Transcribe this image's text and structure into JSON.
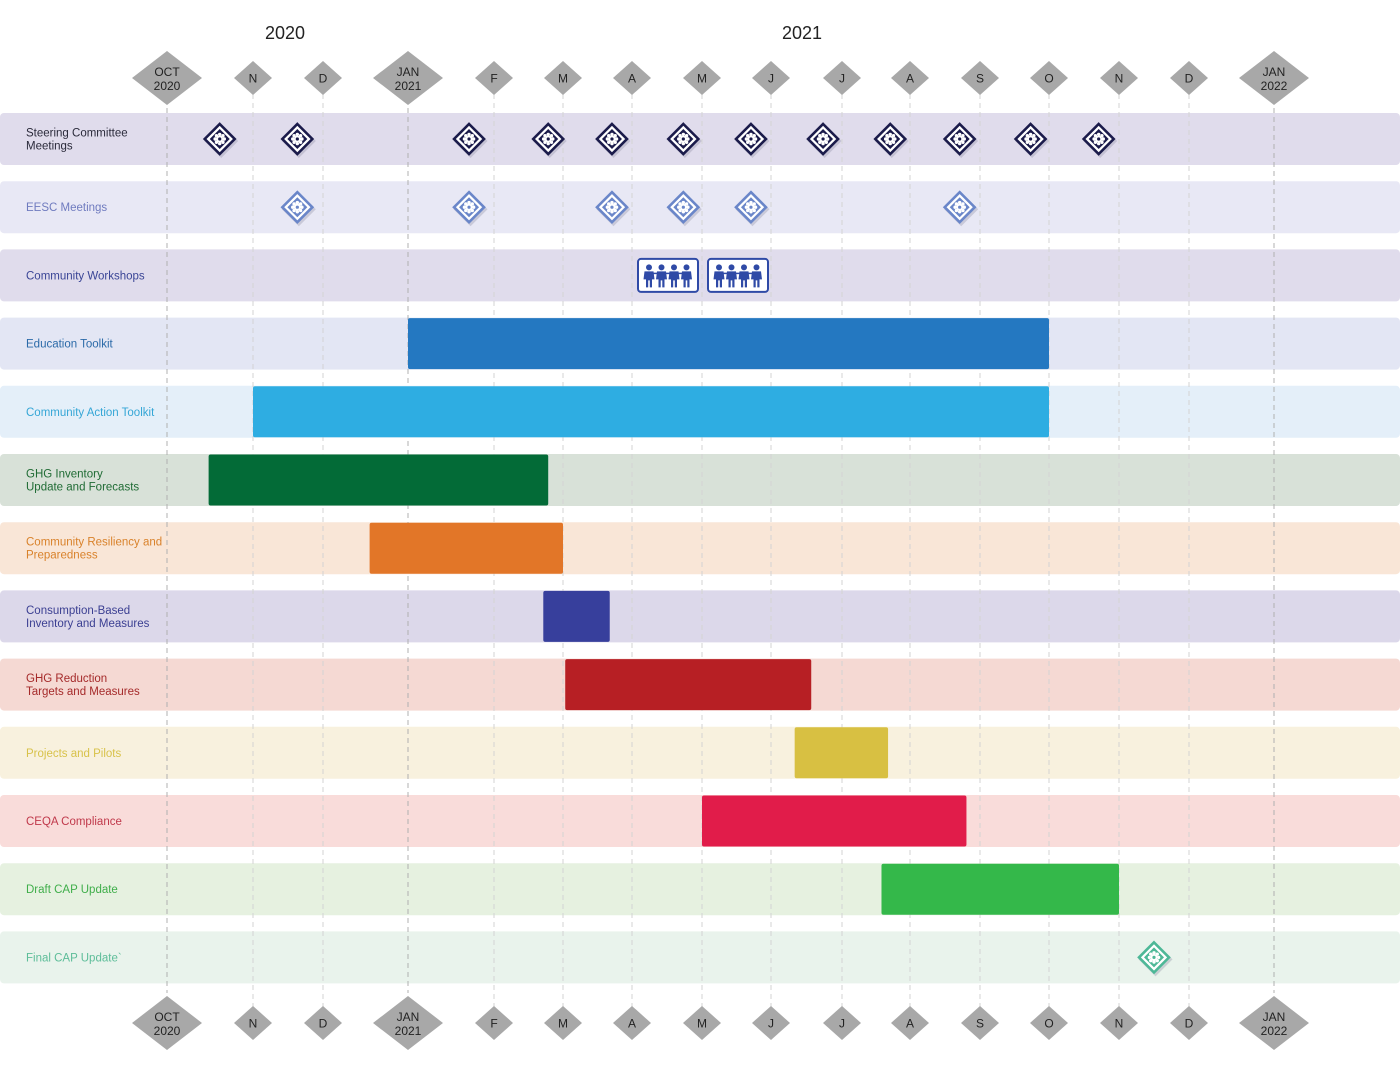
{
  "chart_data": {
    "type": "gantt",
    "title": "",
    "years": [
      "2020",
      "2021"
    ],
    "timeline": {
      "start": "2020-10",
      "end": "2022-01",
      "month_markers": [
        {
          "label": [
            "OCT",
            "2020"
          ],
          "date": "2020-10",
          "major": true
        },
        {
          "label": [
            "N"
          ],
          "date": "2020-11",
          "major": false
        },
        {
          "label": [
            "D"
          ],
          "date": "2020-12",
          "major": false
        },
        {
          "label": [
            "JAN",
            "2021"
          ],
          "date": "2021-01",
          "major": true
        },
        {
          "label": [
            "F"
          ],
          "date": "2021-02",
          "major": false
        },
        {
          "label": [
            "M"
          ],
          "date": "2021-03",
          "major": false
        },
        {
          "label": [
            "A"
          ],
          "date": "2021-04",
          "major": false
        },
        {
          "label": [
            "M"
          ],
          "date": "2021-05",
          "major": false
        },
        {
          "label": [
            "J"
          ],
          "date": "2021-06",
          "major": false
        },
        {
          "label": [
            "J"
          ],
          "date": "2021-07",
          "major": false
        },
        {
          "label": [
            "A"
          ],
          "date": "2021-08",
          "major": false
        },
        {
          "label": [
            "S"
          ],
          "date": "2021-09",
          "major": false
        },
        {
          "label": [
            "O"
          ],
          "date": "2021-10",
          "major": false
        },
        {
          "label": [
            "N"
          ],
          "date": "2021-11",
          "major": false
        },
        {
          "label": [
            "D"
          ],
          "date": "2021-12",
          "major": false
        },
        {
          "label": [
            "JAN",
            "2022"
          ],
          "date": "2022-01",
          "major": true
        }
      ]
    },
    "tasks": [
      {
        "name": [
          "Steering Committee",
          "Meetings"
        ],
        "label_color": "#2a2a3a",
        "band_color": "#e0dcec",
        "kind": "milestones",
        "icon": "gear-diamond-icon",
        "marker_color": "#1b1b4b",
        "dates": [
          "2020-10-20",
          "2020-11-20",
          "2021-01-23",
          "2021-02-23",
          "2021-03-23",
          "2021-04-23",
          "2021-05-23",
          "2021-06-23",
          "2021-07-23",
          "2021-08-23",
          "2021-09-23",
          "2021-10-23"
        ]
      },
      {
        "name": [
          "EESC Meetings"
        ],
        "label_color": "#6f7bbf",
        "band_color": "#e8e8f5",
        "kind": "milestones",
        "icon": "gear-diamond-icon",
        "marker_color": "#6a86c9",
        "dates": [
          "2020-11-20",
          "2021-01-23",
          "2021-03-23",
          "2021-04-23",
          "2021-05-23",
          "2021-08-23"
        ]
      },
      {
        "name": [
          "Community Workshops"
        ],
        "label_color": "#3a4596",
        "band_color": "#e0dcec",
        "kind": "workshops",
        "icon": "people-group-icon",
        "marker_color": "#2f4aa6",
        "dates": [
          "2021-04-01",
          "2021-05-01"
        ]
      },
      {
        "name": [
          "Education Toolkit"
        ],
        "label_color": "#2b6aa8",
        "band_color": "#e3e6f4",
        "kind": "bar",
        "start": "2021-01-01",
        "end": "2021-10-01",
        "color": "#2478c1"
      },
      {
        "name": [
          "Community Action Toolkit"
        ],
        "label_color": "#35a6d6",
        "band_color": "#e4eff9",
        "kind": "bar",
        "start": "2020-11-01",
        "end": "2021-10-01",
        "color": "#2eade2"
      },
      {
        "name": [
          "GHG Inventory",
          "Update and Forecasts"
        ],
        "label_color": "#1f6b34",
        "band_color": "#d8e1d8",
        "kind": "bar",
        "start": "2020-10-16",
        "end": "2021-02-23",
        "color": "#036b37"
      },
      {
        "name": [
          "Community Resiliency and",
          "Preparedness"
        ],
        "label_color": "#d9822b",
        "band_color": "#f9e6d7",
        "kind": "bar",
        "start": "2020-12-18",
        "end": "2021-03-01",
        "color": "#e27628"
      },
      {
        "name": [
          "Consumption-Based",
          "Inventory and Measures"
        ],
        "label_color": "#3b3f92",
        "band_color": "#dcd8ea",
        "kind": "bar",
        "start": "2021-02-21",
        "end": "2021-03-22",
        "color": "#373f9c"
      },
      {
        "name": [
          "GHG Reduction",
          "Targets and Measures"
        ],
        "label_color": "#a52a2a",
        "band_color": "#f5d9d3",
        "kind": "bar",
        "start": "2021-03-02",
        "end": "2021-06-18",
        "color": "#b71f24"
      },
      {
        "name": [
          "Projects and Pilots"
        ],
        "label_color": "#d8c24a",
        "band_color": "#f8f1de",
        "kind": "bar",
        "start": "2021-06-11",
        "end": "2021-07-22",
        "color": "#d8c042"
      },
      {
        "name": [
          "CEQA Compliance"
        ],
        "label_color": "#c0394b",
        "band_color": "#f9dcda",
        "kind": "bar",
        "start": "2021-05-01",
        "end": "2021-08-26",
        "color": "#e11c4a"
      },
      {
        "name": [
          "Draft CAP Update"
        ],
        "label_color": "#3fae4a",
        "band_color": "#e6f1e0",
        "kind": "bar",
        "start": "2021-07-19",
        "end": "2021-11-01",
        "color": "#34b84a"
      },
      {
        "name": [
          "Final CAP Update`"
        ],
        "label_color": "#5dbd99",
        "band_color": "#e9f3ec",
        "kind": "milestones",
        "icon": "gear-diamond-icon",
        "marker_color": "#4db897",
        "dates": [
          "2021-11-16"
        ]
      }
    ]
  }
}
